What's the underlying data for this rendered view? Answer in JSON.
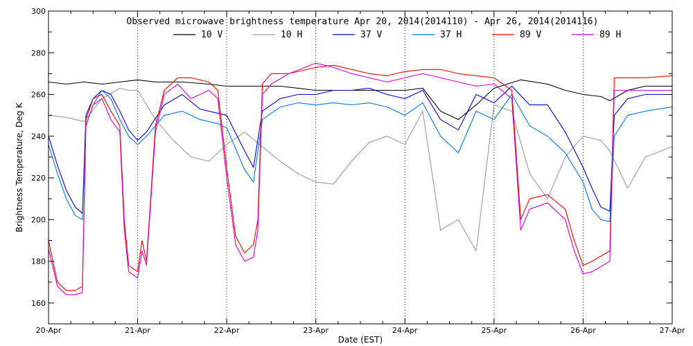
{
  "chart_data": {
    "type": "line",
    "title": "Observed microwave brightness temperature Apr 20, 2014(2014110) - Apr 26, 2014(2014116)",
    "xlabel": "Date (EST)",
    "ylabel": "Brightness Temperature, Deg K",
    "ylim": [
      150,
      300
    ],
    "xlim": [
      0,
      7
    ],
    "y_ticks": [
      "160",
      "180",
      "200",
      "220",
      "240",
      "260",
      "280",
      "300"
    ],
    "x_ticks": [
      "20-Apr",
      "21-Apr",
      "22-Apr",
      "23-Apr",
      "24-Apr",
      "25-Apr",
      "26-Apr",
      "27-Apr"
    ],
    "grid": true,
    "legend_position": "top",
    "series": [
      {
        "name": "10 V",
        "color": "#000000",
        "x": [
          0,
          0.2,
          0.4,
          0.6,
          0.8,
          1.0,
          1.2,
          1.5,
          1.8,
          2.0,
          2.3,
          2.6,
          3.0,
          3.3,
          3.6,
          4.0,
          4.2,
          4.4,
          4.6,
          4.8,
          5.0,
          5.3,
          5.6,
          5.8,
          6.0,
          6.2,
          6.3,
          6.5,
          6.7,
          7.0
        ],
        "values": [
          266,
          265,
          266,
          265,
          266,
          267,
          266,
          266,
          265,
          264,
          264,
          264,
          262,
          262,
          262,
          262,
          263,
          252,
          248,
          255,
          263,
          267,
          265,
          262,
          260,
          259,
          257,
          262,
          264,
          264
        ]
      },
      {
        "name": "10 H",
        "color": "#999999",
        "x": [
          0,
          0.2,
          0.4,
          0.6,
          0.8,
          0.9,
          1.0,
          1.2,
          1.4,
          1.6,
          1.8,
          2.0,
          2.2,
          2.4,
          2.6,
          2.8,
          3.0,
          3.2,
          3.4,
          3.6,
          3.8,
          4.0,
          4.2,
          4.4,
          4.6,
          4.8,
          5.0,
          5.2,
          5.4,
          5.6,
          5.8,
          6.0,
          6.2,
          6.3,
          6.5,
          6.7,
          7.0
        ],
        "values": [
          250,
          249,
          247,
          258,
          263,
          262,
          262,
          248,
          238,
          230,
          228,
          236,
          242,
          235,
          228,
          222,
          218,
          217,
          228,
          237,
          240,
          236,
          252,
          195,
          200,
          185,
          255,
          252,
          222,
          210,
          230,
          240,
          238,
          233,
          215,
          230,
          235
        ]
      },
      {
        "name": "37 V",
        "color": "#0000cc",
        "x": [
          0,
          0.1,
          0.2,
          0.3,
          0.38,
          0.42,
          0.5,
          0.6,
          0.7,
          0.8,
          0.9,
          1.0,
          1.1,
          1.3,
          1.5,
          1.7,
          1.9,
          2.0,
          2.2,
          2.3,
          2.4,
          2.6,
          2.8,
          3.0,
          3.2,
          3.4,
          3.6,
          3.8,
          4.0,
          4.2,
          4.4,
          4.6,
          4.8,
          5.0,
          5.2,
          5.4,
          5.6,
          5.8,
          6.0,
          6.1,
          6.2,
          6.3,
          6.35,
          6.5,
          6.7,
          7.0
        ],
        "values": [
          240,
          226,
          214,
          206,
          203,
          250,
          258,
          262,
          260,
          252,
          243,
          238,
          242,
          255,
          260,
          253,
          251,
          250,
          233,
          225,
          252,
          258,
          260,
          260,
          262,
          262,
          263,
          260,
          258,
          262,
          248,
          243,
          260,
          256,
          264,
          255,
          255,
          242,
          225,
          215,
          206,
          204,
          250,
          258,
          260,
          260
        ]
      },
      {
        "name": "37 H",
        "color": "#0077dd",
        "x": [
          0,
          0.1,
          0.2,
          0.3,
          0.38,
          0.42,
          0.5,
          0.6,
          0.7,
          0.8,
          0.9,
          1.0,
          1.1,
          1.3,
          1.5,
          1.7,
          1.9,
          2.0,
          2.2,
          2.3,
          2.4,
          2.6,
          2.8,
          3.0,
          3.2,
          3.4,
          3.6,
          3.8,
          4.0,
          4.2,
          4.4,
          4.6,
          4.8,
          5.0,
          5.2,
          5.4,
          5.6,
          5.8,
          6.0,
          6.1,
          6.2,
          6.3,
          6.35,
          6.5,
          6.7,
          7.0
        ],
        "values": [
          236,
          222,
          210,
          202,
          200,
          245,
          255,
          262,
          258,
          248,
          240,
          236,
          240,
          250,
          252,
          248,
          246,
          244,
          224,
          218,
          248,
          254,
          256,
          255,
          256,
          255,
          256,
          254,
          250,
          256,
          240,
          232,
          252,
          248,
          260,
          245,
          240,
          232,
          218,
          205,
          200,
          199,
          240,
          250,
          252,
          254
        ]
      },
      {
        "name": "89 V",
        "color": "#ee0000",
        "x": [
          0,
          0.1,
          0.2,
          0.3,
          0.38,
          0.42,
          0.5,
          0.6,
          0.7,
          0.8,
          0.85,
          0.9,
          1.0,
          1.05,
          1.1,
          1.2,
          1.3,
          1.45,
          1.6,
          1.8,
          1.9,
          2.0,
          2.1,
          2.2,
          2.3,
          2.35,
          2.4,
          2.5,
          2.7,
          3.0,
          3.2,
          3.4,
          3.6,
          3.8,
          4.0,
          4.2,
          4.4,
          4.6,
          4.8,
          5.0,
          5.2,
          5.3,
          5.4,
          5.6,
          5.8,
          5.9,
          6.0,
          6.1,
          6.3,
          6.35,
          6.5,
          6.7,
          7.0
        ],
        "values": [
          190,
          170,
          166,
          166,
          168,
          248,
          258,
          260,
          252,
          245,
          200,
          178,
          175,
          190,
          180,
          245,
          262,
          268,
          268,
          266,
          262,
          225,
          192,
          184,
          188,
          200,
          265,
          270,
          270,
          273,
          274,
          272,
          270,
          269,
          271,
          272,
          272,
          270,
          269,
          268,
          262,
          200,
          210,
          212,
          205,
          190,
          178,
          180,
          185,
          268,
          268,
          268,
          269
        ]
      },
      {
        "name": "89 H",
        "color": "#cc00cc",
        "x": [
          0,
          0.1,
          0.2,
          0.3,
          0.38,
          0.42,
          0.5,
          0.6,
          0.7,
          0.8,
          0.85,
          0.9,
          1.0,
          1.05,
          1.1,
          1.2,
          1.3,
          1.45,
          1.6,
          1.8,
          1.9,
          2.0,
          2.1,
          2.2,
          2.3,
          2.35,
          2.4,
          2.5,
          2.7,
          3.0,
          3.2,
          3.4,
          3.6,
          3.8,
          4.0,
          4.2,
          4.4,
          4.6,
          4.8,
          5.0,
          5.2,
          5.3,
          5.4,
          5.6,
          5.8,
          5.9,
          6.0,
          6.1,
          6.3,
          6.35,
          6.5,
          6.7,
          7.0
        ],
        "values": [
          186,
          168,
          164,
          164,
          165,
          245,
          255,
          258,
          248,
          242,
          195,
          175,
          172,
          185,
          178,
          242,
          260,
          265,
          258,
          262,
          258,
          220,
          188,
          180,
          182,
          195,
          260,
          265,
          270,
          275,
          273,
          270,
          268,
          266,
          268,
          270,
          268,
          266,
          264,
          265,
          258,
          195,
          205,
          208,
          200,
          185,
          174,
          175,
          180,
          262,
          262,
          262,
          262
        ]
      }
    ]
  }
}
